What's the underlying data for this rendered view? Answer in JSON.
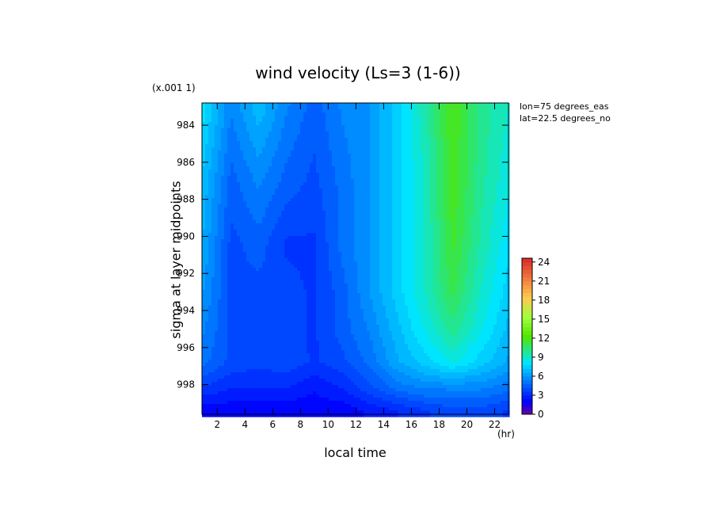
{
  "chart_data": {
    "type": "heatmap",
    "title": "wind velocity (Ls=3 (1-6))",
    "scale_note": "(x.001 1)",
    "xlabel": "local time",
    "xunit": "(hr)",
    "ylabel": "sigma at layer midpoints",
    "annotations": [
      "lon=75 degrees_eas",
      "lat=22.5 degrees_no"
    ],
    "x_ticks": [
      2,
      4,
      6,
      8,
      10,
      12,
      14,
      16,
      18,
      20,
      22
    ],
    "y_ticks": [
      984,
      986,
      988,
      990,
      992,
      994,
      996,
      998
    ],
    "xlim": [
      0.9,
      23.0
    ],
    "ylim": [
      999.6,
      982.8
    ],
    "colorbar": {
      "ticks": [
        0,
        3,
        6,
        9,
        12,
        15,
        18,
        21,
        24
      ],
      "range": [
        0,
        24.6
      ],
      "levels": 41
    },
    "x": [
      1,
      3,
      5,
      7,
      9,
      11,
      13,
      15,
      17,
      19,
      21,
      23
    ],
    "y": [
      983.0,
      987.2,
      990.4,
      993.0,
      995.0,
      996.8,
      998.2,
      999.4
    ],
    "values": [
      [
        8.0,
        5.5,
        7.0,
        5.5,
        4.5,
        5.5,
        6.0,
        7.5,
        9.5,
        12.0,
        10.0,
        9.0
      ],
      [
        7.0,
        4.5,
        5.5,
        4.5,
        4.0,
        5.0,
        6.0,
        7.5,
        9.0,
        11.8,
        9.8,
        8.5
      ],
      [
        6.5,
        4.0,
        4.5,
        3.5,
        3.5,
        5.0,
        6.0,
        7.5,
        9.0,
        11.5,
        9.5,
        8.0
      ],
      [
        6.0,
        4.0,
        4.0,
        3.8,
        3.5,
        4.5,
        6.0,
        7.5,
        9.0,
        11.0,
        9.0,
        7.5
      ],
      [
        5.5,
        4.0,
        4.0,
        3.8,
        3.5,
        4.5,
        5.5,
        7.0,
        8.5,
        10.0,
        8.5,
        7.0
      ],
      [
        5.0,
        4.0,
        3.8,
        4.0,
        3.5,
        4.0,
        5.0,
        6.5,
        7.5,
        8.5,
        7.5,
        6.5
      ],
      [
        3.5,
        3.0,
        3.0,
        3.0,
        2.5,
        3.0,
        4.0,
        5.0,
        5.5,
        5.5,
        5.5,
        5.0
      ],
      [
        2.0,
        2.0,
        2.0,
        2.0,
        2.0,
        2.0,
        2.5,
        3.0,
        3.5,
        4.0,
        4.0,
        3.5
      ]
    ]
  }
}
